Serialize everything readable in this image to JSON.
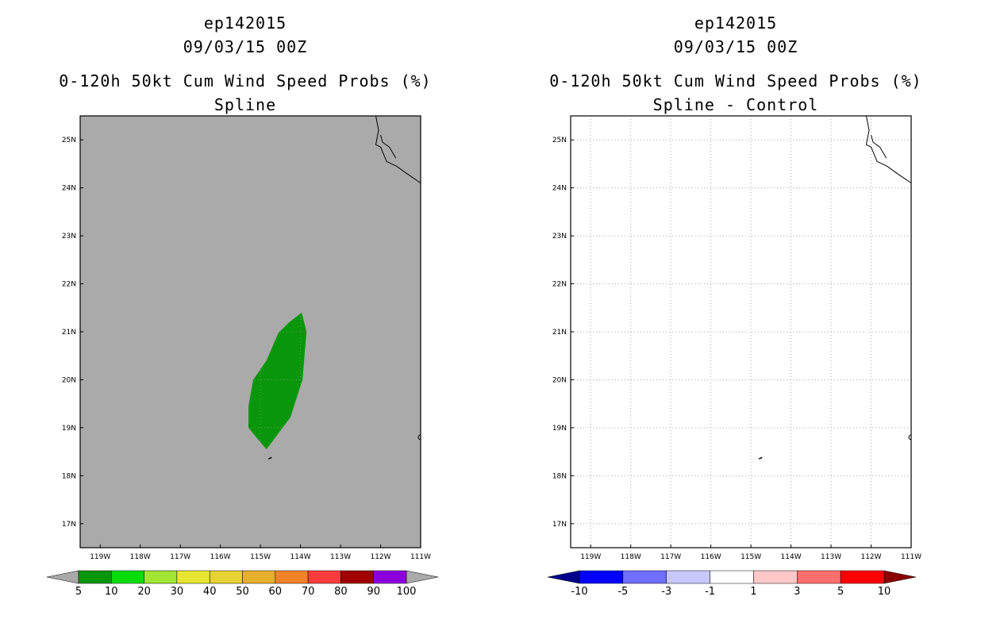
{
  "left_panel": {
    "storm_id": "ep142015",
    "datetime": "09/03/15 00Z",
    "product": "0-120h 50kt Cum Wind Speed Probs (%)",
    "subtitle": "Spline",
    "map_background": "#aaaaaa",
    "probability_area_color": "#0a960a",
    "colorbar": {
      "colors": [
        "#0a960a",
        "#0adc0a",
        "#a0e632",
        "#e6e632",
        "#e6d232",
        "#e6af2d",
        "#f08228",
        "#fa3c3c",
        "#a00000",
        "#8c00dc"
      ],
      "labels": [
        "5",
        "10",
        "20",
        "30",
        "40",
        "50",
        "60",
        "70",
        "80",
        "90",
        "100"
      ],
      "under_color": "#aaaaaa",
      "over_color": "#aaaaaa"
    }
  },
  "right_panel": {
    "storm_id": "ep142015",
    "datetime": "09/03/15 00Z",
    "product": "0-120h 50kt Cum Wind Speed Probs (%)",
    "subtitle": "Spline - Control",
    "map_background": "#ffffff",
    "colorbar": {
      "colors": [
        "#0000ff",
        "#6e6eff",
        "#c8c8ff",
        "#ffffff",
        "#ffc8c8",
        "#ff6e6e",
        "#ff0000"
      ],
      "labels": [
        "-10",
        "-5",
        "-3",
        "-1",
        "1",
        "3",
        "5",
        "10"
      ],
      "under_color": "#00008c",
      "over_color": "#8c0000"
    }
  },
  "map": {
    "lon_labels": [
      "119W",
      "118W",
      "117W",
      "116W",
      "115W",
      "114W",
      "113W",
      "112W",
      "111W"
    ],
    "lat_labels": [
      "25N",
      "24N",
      "23N",
      "22N",
      "21N",
      "20N",
      "19N",
      "18N",
      "17N"
    ],
    "lon_range": [
      -119.5,
      -111.0
    ],
    "lat_range": [
      16.5,
      25.5
    ]
  }
}
